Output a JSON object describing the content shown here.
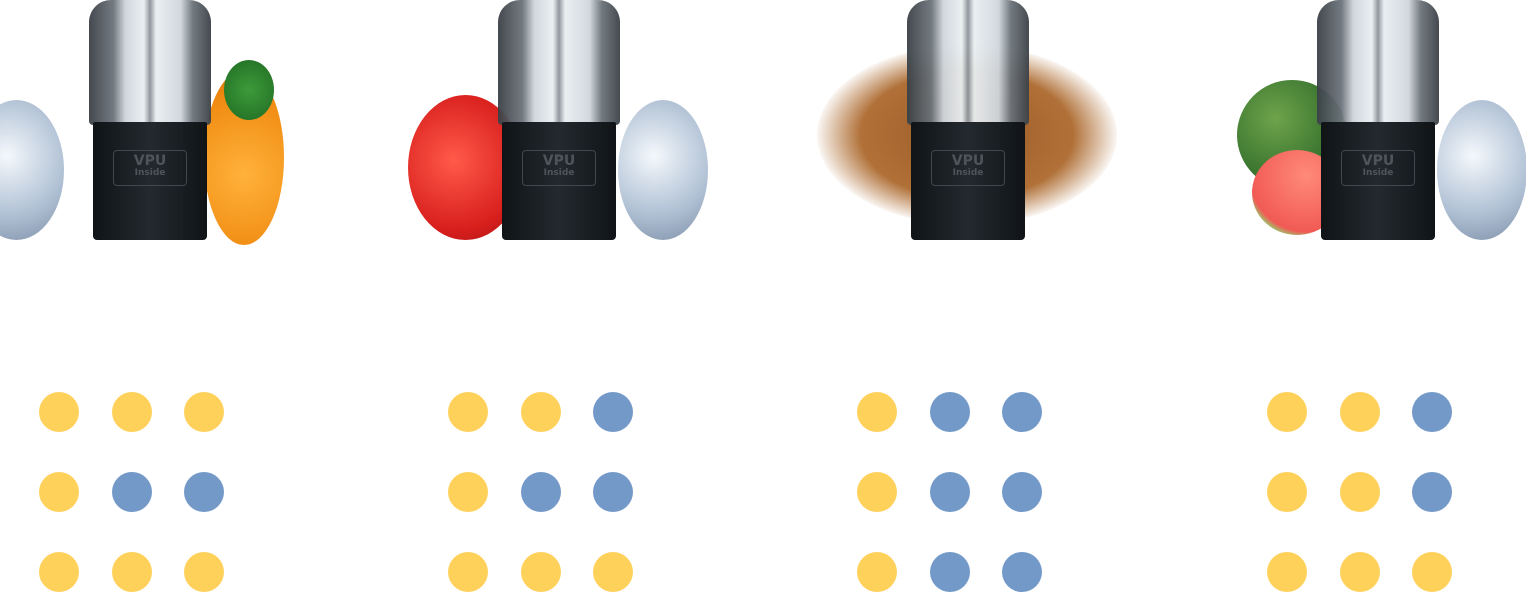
{
  "colors": {
    "yellow": "#FED15A",
    "blue": "#7399C8"
  },
  "logo": {
    "brand": "VPU",
    "sub": "Inside"
  },
  "products": [
    {
      "flavor_art": [
        "ice",
        "mango"
      ],
      "grid": [
        [
          "yellow",
          "yellow",
          "yellow"
        ],
        [
          "yellow",
          "blue",
          "blue"
        ],
        [
          "yellow",
          "yellow",
          "yellow"
        ]
      ]
    },
    {
      "flavor_art": [
        "strawberry",
        "ice"
      ],
      "grid": [
        [
          "yellow",
          "yellow",
          "blue"
        ],
        [
          "yellow",
          "blue",
          "blue"
        ],
        [
          "yellow",
          "yellow",
          "yellow"
        ]
      ]
    },
    {
      "flavor_art": [
        "tobacco"
      ],
      "grid": [
        [
          "yellow",
          "blue",
          "blue"
        ],
        [
          "yellow",
          "blue",
          "blue"
        ],
        [
          "yellow",
          "blue",
          "blue"
        ]
      ]
    },
    {
      "flavor_art": [
        "watermelon",
        "ice"
      ],
      "grid": [
        [
          "yellow",
          "yellow",
          "blue"
        ],
        [
          "yellow",
          "yellow",
          "blue"
        ],
        [
          "yellow",
          "yellow",
          "yellow"
        ]
      ]
    }
  ]
}
